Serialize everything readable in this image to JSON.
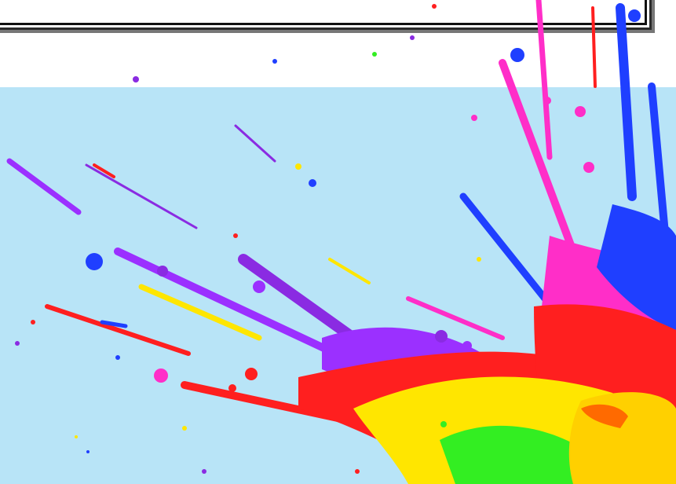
{
  "colors": {
    "sky": "#b8e4f7",
    "page": "#ffffff",
    "frame": "#111111",
    "purple": "#8a2be2",
    "violet": "#9b30ff",
    "blue": "#1f3fff",
    "magenta": "#ff2ec8",
    "red": "#ff1f1f",
    "orange": "#ff6a00",
    "yellow": "#ffe600",
    "gold": "#ffd000",
    "green": "#33ee22"
  },
  "icons": {
    "frame": "framed-panel",
    "splash": "paint-splash"
  }
}
